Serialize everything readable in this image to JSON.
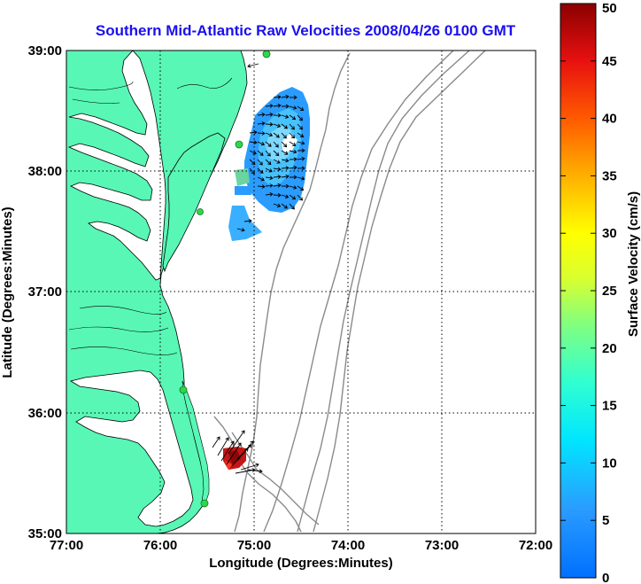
{
  "title": "Southern Mid-Atlantic Raw Velocities 2008/04/26 0100 GMT",
  "xlabel": "Longitude (Degrees:Minutes)",
  "ylabel": "Latitude (Degrees:Minutes)",
  "x_ticks": [
    "77:00",
    "76:00",
    "75:00",
    "74:00",
    "73:00",
    "72:00"
  ],
  "y_ticks": [
    "39:00",
    "38:00",
    "37:00",
    "36:00",
    "35:00"
  ],
  "colorbar": {
    "label": "Surface Velocity (cm/s)",
    "ticks": [
      "50",
      "45",
      "40",
      "35",
      "30",
      "25",
      "20",
      "15",
      "10",
      "5",
      "0"
    ],
    "range": [
      0,
      50
    ]
  },
  "map": {
    "lon_range": [
      -77,
      -72
    ],
    "lat_range": [
      35,
      39
    ],
    "grid": "dotted",
    "land_color": "#58f7b5",
    "water_color": "#ffffff",
    "coastline_color": "#000000",
    "bathymetry_color": "#8a8a8a",
    "radar_sites_color": "#2fd64a",
    "vector_color": "#000000"
  },
  "icons": {
    "radar_site": "radar-station-icon",
    "vector": "current-vector-icon"
  }
}
